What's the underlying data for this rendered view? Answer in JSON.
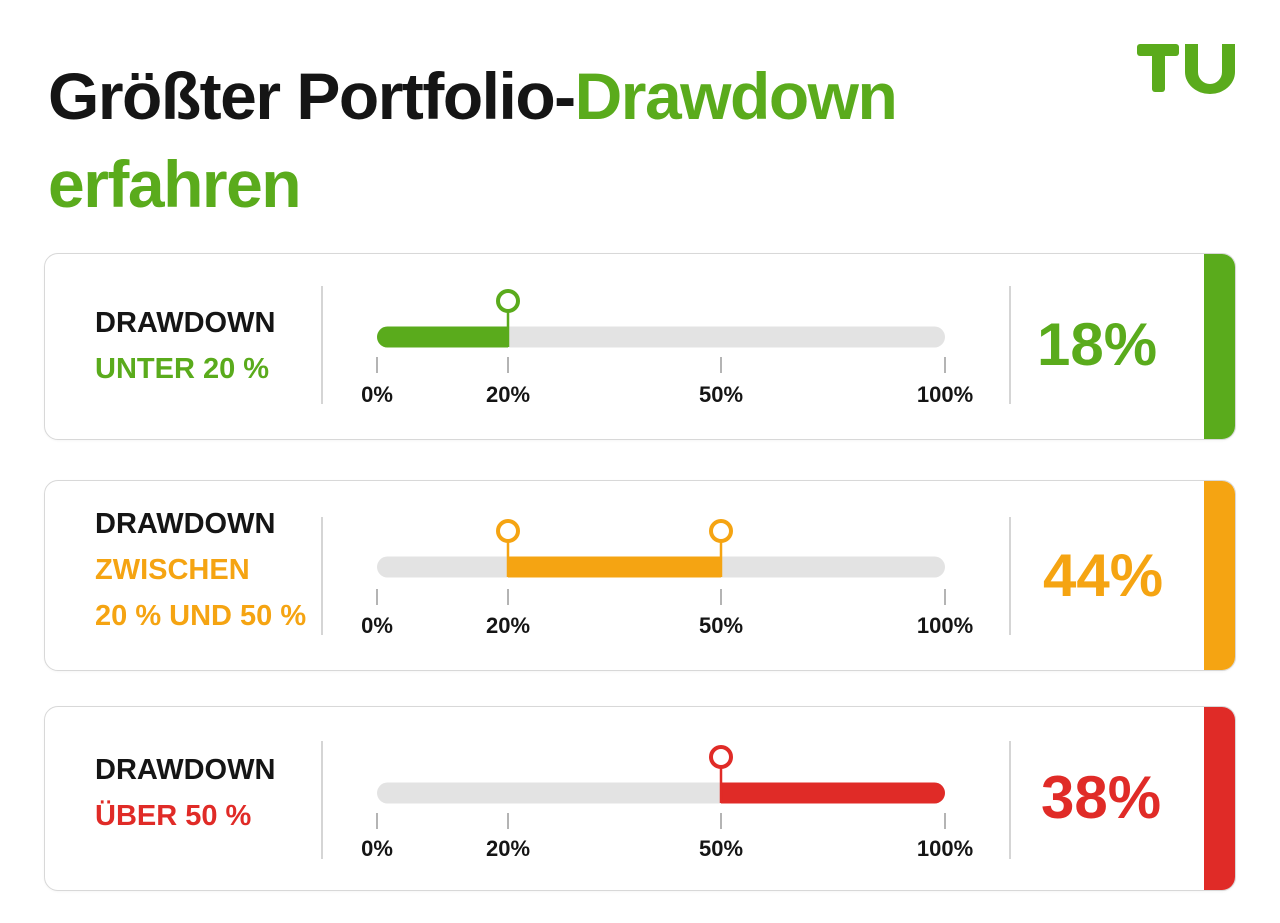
{
  "title": {
    "part1": "Größter Portfolio-",
    "part2": "Drawdown",
    "part3": "erfahren"
  },
  "logo": {
    "text": "TU"
  },
  "colors": {
    "green": "#5aab1c",
    "orange": "#f5a412",
    "red": "#e02b27",
    "track": "#e3e3e3",
    "text": "#151515"
  },
  "chart_data": {
    "type": "bar",
    "title": "Größter Portfolio-Drawdown erfahren",
    "tick_labels": [
      "0%",
      "20%",
      "50%",
      "100%"
    ],
    "ticks": [
      0,
      20,
      50,
      100
    ],
    "xlim": [
      0,
      100
    ],
    "categories": [
      {
        "label_line1": "DRAWDOWN",
        "label_lines": [
          "UNTER 20 %"
        ],
        "range": [
          0,
          20
        ],
        "value": 18,
        "value_label": "18%",
        "color": "#5aab1c"
      },
      {
        "label_line1": "DRAWDOWN",
        "label_lines": [
          "ZWISCHEN",
          "20 % UND 50 %"
        ],
        "range": [
          20,
          50
        ],
        "value": 44,
        "value_label": "44%",
        "color": "#f5a412"
      },
      {
        "label_line1": "DRAWDOWN",
        "label_lines": [
          "ÜBER 50 %"
        ],
        "range": [
          50,
          100
        ],
        "value": 38,
        "value_label": "38%",
        "color": "#e02b27"
      }
    ]
  }
}
